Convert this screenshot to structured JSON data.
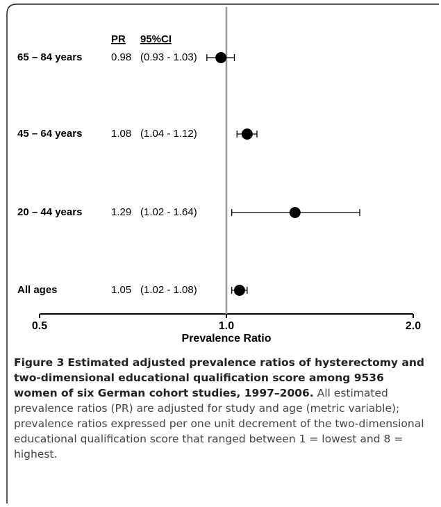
{
  "chart_data": {
    "type": "forest",
    "categories": [
      "65 – 84 years",
      "45 – 64 years",
      "20 – 44 years",
      "All ages"
    ],
    "values": [
      0.98,
      1.08,
      1.29,
      1.05
    ],
    "lower": [
      0.93,
      1.04,
      1.02,
      1.02
    ],
    "upper": [
      1.03,
      1.12,
      1.64,
      1.08
    ],
    "ci_labels": [
      "(0.93 - 1.03)",
      "(1.04 - 1.12)",
      "(1.02 - 1.64)",
      "(1.02 - 1.08)"
    ],
    "column_headers": [
      "PR",
      "95%CI"
    ],
    "xlabel": "Prevalence Ratio",
    "xscale": "log",
    "xlim": [
      0.5,
      2
    ],
    "xticks": [
      0.5,
      {
        "value": 1,
        "label": "1.0"
      },
      {
        "value": 2,
        "label": "2.0"
      }
    ],
    "reference_line": 1,
    "color": "#000000",
    "reference_color": "#999999"
  },
  "caption": {
    "label": "Figure 3",
    "title": "Estimated adjusted prevalence ratios of hysterectomy and two-dimensional educational qualification score among 9536 women of six German cohort studies, 1997–2006.",
    "text": "All estimated prevalence ratios (PR) are adjusted for study and age (metric variable); prevalence ratios expressed per one unit decrement of the two-dimensional educational qualification score that ranged between 1 = lowest and 8 = highest."
  }
}
